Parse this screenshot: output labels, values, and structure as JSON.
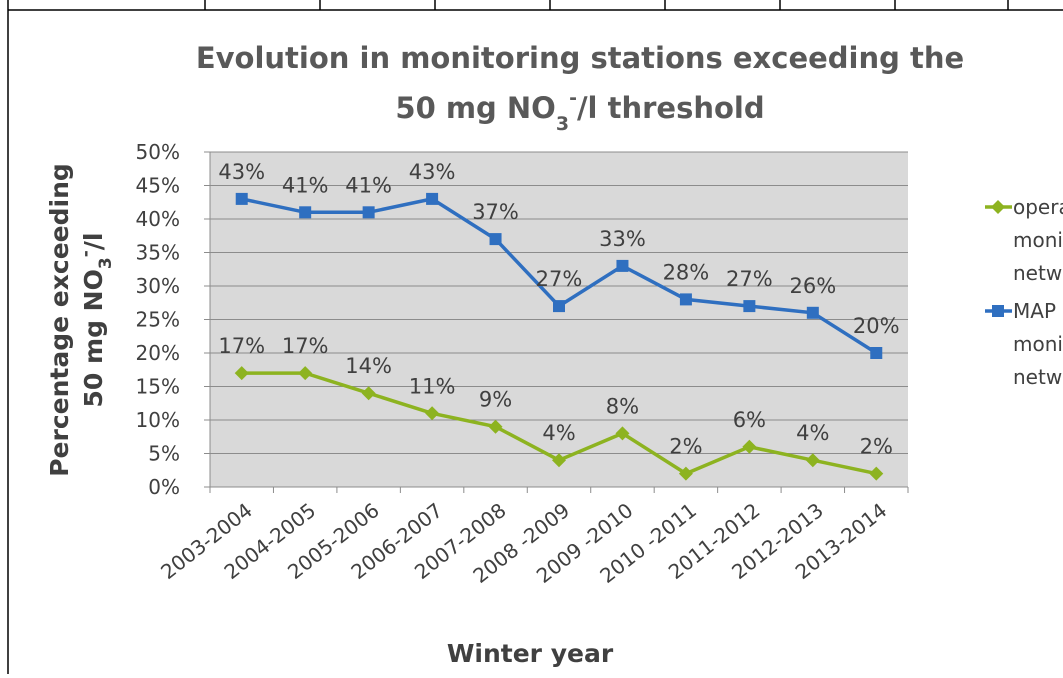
{
  "chart_data": {
    "type": "line",
    "title": {
      "line1": "Evolution in monitoring stations exceeding the",
      "line2": [
        "50 mg NO",
        "3",
        "-",
        "/l threshold"
      ]
    },
    "y_label": {
      "line1": "Percentage exceeding",
      "line2": [
        "50 mg NO",
        "3",
        "-",
        "/l"
      ]
    },
    "x_label": "Winter year",
    "categories": [
      "2003-2004",
      "2004-2005",
      "2005-2006",
      "2006-2007",
      "2007-2008",
      "2008 -2009",
      "2009 -2010",
      "2010 -2011",
      "2011-2012",
      "2012-2013",
      "2013-2014"
    ],
    "series": [
      {
        "name": "operat monito netwo",
        "color": "#8db320",
        "marker": "diamond",
        "values": [
          17,
          17,
          14,
          11,
          9,
          4,
          8,
          2,
          6,
          4,
          2
        ],
        "value_labels": [
          "17%",
          "17%",
          "14%",
          "11%",
          "9%",
          "4%",
          "8%",
          "2%",
          "6%",
          "4%",
          "2%"
        ]
      },
      {
        "name": "MAP monito netwo",
        "color": "#2f6fc0",
        "marker": "square",
        "values": [
          43,
          41,
          41,
          43,
          37,
          27,
          33,
          28,
          27,
          26,
          20
        ],
        "value_labels": [
          "43%",
          "41%",
          "41%",
          "43%",
          "37%",
          "27%",
          "33%",
          "28%",
          "27%",
          "26%",
          "20%"
        ]
      }
    ],
    "ylim": [
      0,
      50
    ],
    "yticks": [
      {
        "value": 0,
        "label": "0%"
      },
      {
        "value": 5,
        "label": "5%"
      },
      {
        "value": 10,
        "label": "10%"
      },
      {
        "value": 15,
        "label": "15%"
      },
      {
        "value": 20,
        "label": "20%"
      },
      {
        "value": 25,
        "label": "25%"
      },
      {
        "value": 30,
        "label": "30%"
      },
      {
        "value": 35,
        "label": "35%"
      },
      {
        "value": 40,
        "label": "40%"
      },
      {
        "value": 45,
        "label": "45%"
      },
      {
        "value": 50,
        "label": "50%"
      }
    ],
    "grid": true,
    "legend": "right"
  }
}
